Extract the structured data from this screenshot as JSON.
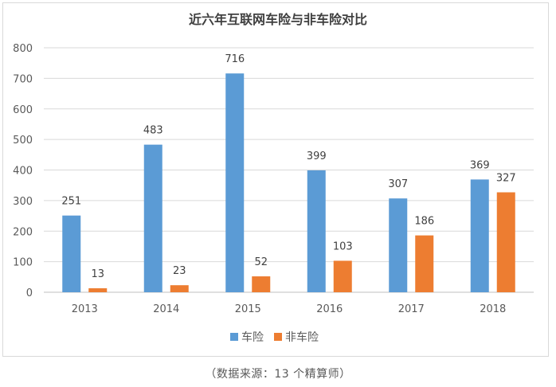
{
  "chart_data": {
    "type": "bar",
    "title": "近六年互联网车险与非车险对比",
    "categories": [
      "2013",
      "2014",
      "2015",
      "2016",
      "2017",
      "2018"
    ],
    "series": [
      {
        "name": "车险",
        "values": [
          251,
          483,
          716,
          399,
          307,
          369
        ],
        "color": "#5b9bd5"
      },
      {
        "name": "非车险",
        "values": [
          13,
          23,
          52,
          103,
          186,
          327
        ],
        "color": "#ed7d31"
      }
    ],
    "ylim": [
      0,
      800
    ],
    "yticks": [
      "0",
      "100",
      "200",
      "300",
      "400",
      "500",
      "600",
      "700",
      "800"
    ],
    "grid": true,
    "legend": "bottom"
  },
  "source_note": "（数据来源：13 个精算师）"
}
